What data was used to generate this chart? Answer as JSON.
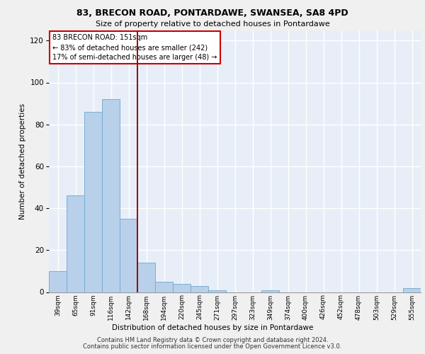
{
  "title1": "83, BRECON ROAD, PONTARDAWE, SWANSEA, SA8 4PD",
  "title2": "Size of property relative to detached houses in Pontardawe",
  "xlabel": "Distribution of detached houses by size in Pontardawe",
  "ylabel": "Number of detached properties",
  "categories": [
    "39sqm",
    "65sqm",
    "91sqm",
    "116sqm",
    "142sqm",
    "168sqm",
    "194sqm",
    "220sqm",
    "245sqm",
    "271sqm",
    "297sqm",
    "323sqm",
    "349sqm",
    "374sqm",
    "400sqm",
    "426sqm",
    "452sqm",
    "478sqm",
    "503sqm",
    "529sqm",
    "555sqm"
  ],
  "values": [
    10,
    46,
    86,
    92,
    35,
    14,
    5,
    4,
    3,
    1,
    0,
    0,
    1,
    0,
    0,
    0,
    0,
    0,
    0,
    0,
    2
  ],
  "bar_color": "#b8d0ea",
  "bar_edge_color": "#7aaed4",
  "bg_color": "#e8eef8",
  "grid_color": "#ffffff",
  "vline_x": 4.5,
  "vline_color": "#990000",
  "annotation_line1": "83 BRECON ROAD: 151sqm",
  "annotation_line2": "← 83% of detached houses are smaller (242)",
  "annotation_line3": "17% of semi-detached houses are larger (48) →",
  "annotation_box_color": "#ffffff",
  "annotation_box_edge": "#cc0000",
  "ylim": [
    0,
    125
  ],
  "yticks": [
    0,
    20,
    40,
    60,
    80,
    100,
    120
  ],
  "footer1": "Contains HM Land Registry data © Crown copyright and database right 2024.",
  "footer2": "Contains public sector information licensed under the Open Government Licence v3.0."
}
